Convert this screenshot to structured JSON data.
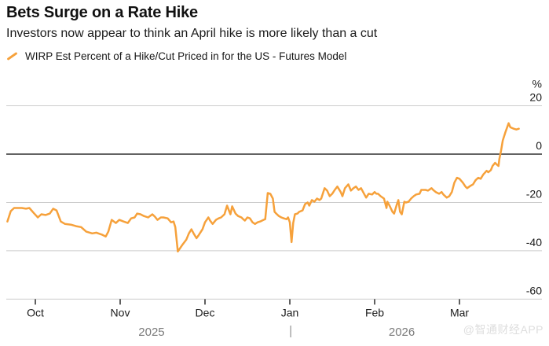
{
  "header": {
    "title": "Bets Surge on a Rate Hike",
    "subtitle": "Investors now appear to think an April hike is more likely than a cut"
  },
  "legend": {
    "series_label": "WIRP Est Percent of a Hike/Cut Priced in for the US - Futures Model"
  },
  "watermark": "@智通财经APP",
  "colors": {
    "line": "#F6A13B",
    "gridline": "#CCCCCC",
    "zero_line": "#636363",
    "axis_text": "#1A1A1A",
    "tick_mark": "#2B2B2B",
    "year_text": "#7A7A7A",
    "watermark": "#DEDEDE"
  },
  "chart_data": {
    "type": "line",
    "title": "Bets Surge on a Rate Hike",
    "subtitle": "Investors now appear to think an April hike is more likely than a cut",
    "legend": "WIRP Est Percent of a Hike/Cut Priced in for the US - Futures Model",
    "ylabel": "%",
    "y_ticks": [
      20,
      0,
      -20,
      -40,
      -60
    ],
    "ylim": [
      -66,
      26
    ],
    "zero_line": true,
    "grid": "horizontal",
    "legend_position": "top-left",
    "x_unit": "months from Oct 2025 tick (0=Oct, 1=Nov, 2=Dec, 3=Jan, 4=Feb, 5=Mar)",
    "x_tick_labels": [
      "Oct",
      "Nov",
      "Dec",
      "Jan",
      "Feb",
      "Mar"
    ],
    "year_labels": [
      {
        "text": "2025",
        "m": 1.37
      },
      {
        "text": "2026",
        "m": 4.32
      }
    ],
    "year_divider_m": 3.01,
    "series": [
      {
        "name": "WIRP Est Percent of a Hike/Cut Priced in for the US - Futures Model",
        "points": [
          [
            -0.33,
            -27.9
          ],
          [
            -0.29,
            -23.6
          ],
          [
            -0.25,
            -22.3
          ],
          [
            -0.21,
            -22.3
          ],
          [
            -0.16,
            -22.3
          ],
          [
            -0.11,
            -22.6
          ],
          [
            -0.07,
            -22.3
          ],
          [
            -0.02,
            -24.3
          ],
          [
            0.03,
            -26.2
          ],
          [
            0.07,
            -24.9
          ],
          [
            0.12,
            -25.2
          ],
          [
            0.17,
            -24.6
          ],
          [
            0.21,
            -22.6
          ],
          [
            0.25,
            -23.3
          ],
          [
            0.3,
            -27.9
          ],
          [
            0.35,
            -28.9
          ],
          [
            0.42,
            -29.2
          ],
          [
            0.48,
            -29.8
          ],
          [
            0.54,
            -30.2
          ],
          [
            0.6,
            -32.1
          ],
          [
            0.67,
            -32.8
          ],
          [
            0.72,
            -32.5
          ],
          [
            0.79,
            -33.4
          ],
          [
            0.83,
            -34.1
          ],
          [
            0.86,
            -32.1
          ],
          [
            0.9,
            -27.2
          ],
          [
            0.95,
            -28.5
          ],
          [
            0.99,
            -27.2
          ],
          [
            1.04,
            -27.9
          ],
          [
            1.09,
            -28.5
          ],
          [
            1.13,
            -26.6
          ],
          [
            1.17,
            -26.2
          ],
          [
            1.2,
            -24.6
          ],
          [
            1.24,
            -24.9
          ],
          [
            1.28,
            -25.6
          ],
          [
            1.33,
            -26.2
          ],
          [
            1.38,
            -24.9
          ],
          [
            1.41,
            -25.9
          ],
          [
            1.44,
            -27.2
          ],
          [
            1.48,
            -26.2
          ],
          [
            1.51,
            -26.2
          ],
          [
            1.56,
            -26.6
          ],
          [
            1.6,
            -28.2
          ],
          [
            1.63,
            -27.9
          ],
          [
            1.65,
            -30.2
          ],
          [
            1.68,
            -40.3
          ],
          [
            1.73,
            -37.7
          ],
          [
            1.78,
            -35.4
          ],
          [
            1.81,
            -32.8
          ],
          [
            1.84,
            -31.1
          ],
          [
            1.87,
            -33.1
          ],
          [
            1.9,
            -34.8
          ],
          [
            1.92,
            -33.8
          ],
          [
            1.97,
            -31.1
          ],
          [
            2.0,
            -28.2
          ],
          [
            2.04,
            -26.2
          ],
          [
            2.06,
            -27.5
          ],
          [
            2.09,
            -28.9
          ],
          [
            2.13,
            -27.2
          ],
          [
            2.16,
            -26.6
          ],
          [
            2.19,
            -26.2
          ],
          [
            2.23,
            -24.9
          ],
          [
            2.26,
            -21.3
          ],
          [
            2.3,
            -24.9
          ],
          [
            2.32,
            -21.6
          ],
          [
            2.36,
            -24.6
          ],
          [
            2.39,
            -25.6
          ],
          [
            2.43,
            -26.2
          ],
          [
            2.45,
            -26.9
          ],
          [
            2.47,
            -27.5
          ],
          [
            2.5,
            -26.2
          ],
          [
            2.53,
            -26.6
          ],
          [
            2.56,
            -28.2
          ],
          [
            2.59,
            -28.9
          ],
          [
            2.62,
            -28.2
          ],
          [
            2.65,
            -27.9
          ],
          [
            2.69,
            -27.2
          ],
          [
            2.71,
            -26.9
          ],
          [
            2.74,
            -16.1
          ],
          [
            2.77,
            -16.4
          ],
          [
            2.8,
            -18.4
          ],
          [
            2.82,
            -23.9
          ],
          [
            2.84,
            -24.6
          ],
          [
            2.87,
            -25.6
          ],
          [
            2.9,
            -26.2
          ],
          [
            2.93,
            -26.6
          ],
          [
            2.96,
            -26.9
          ],
          [
            2.98,
            -26.2
          ],
          [
            3.0,
            -28.2
          ],
          [
            3.02,
            -36.4
          ],
          [
            3.04,
            -28.5
          ],
          [
            3.06,
            -24.9
          ],
          [
            3.09,
            -24.6
          ],
          [
            3.11,
            -23.9
          ],
          [
            3.15,
            -23.3
          ],
          [
            3.18,
            -20.7
          ],
          [
            3.21,
            -20.0
          ],
          [
            3.23,
            -21.3
          ],
          [
            3.26,
            -19.0
          ],
          [
            3.29,
            -19.7
          ],
          [
            3.32,
            -18.4
          ],
          [
            3.35,
            -19.0
          ],
          [
            3.37,
            -18.4
          ],
          [
            3.41,
            -14.1
          ],
          [
            3.44,
            -15.1
          ],
          [
            3.47,
            -17.4
          ],
          [
            3.5,
            -16.4
          ],
          [
            3.53,
            -14.8
          ],
          [
            3.56,
            -13.4
          ],
          [
            3.6,
            -15.7
          ],
          [
            3.62,
            -17.4
          ],
          [
            3.65,
            -14.1
          ],
          [
            3.69,
            -12.5
          ],
          [
            3.72,
            -15.1
          ],
          [
            3.75,
            -14.1
          ],
          [
            3.78,
            -13.4
          ],
          [
            3.81,
            -14.8
          ],
          [
            3.84,
            -14.1
          ],
          [
            3.88,
            -16.7
          ],
          [
            3.9,
            -18.0
          ],
          [
            3.93,
            -16.4
          ],
          [
            3.97,
            -16.7
          ],
          [
            4.0,
            -15.7
          ],
          [
            4.02,
            -16.4
          ],
          [
            4.04,
            -16.4
          ],
          [
            4.07,
            -17.4
          ],
          [
            4.11,
            -18.4
          ],
          [
            4.14,
            -22.3
          ],
          [
            4.15,
            -19.7
          ],
          [
            4.18,
            -21.6
          ],
          [
            4.21,
            -23.9
          ],
          [
            4.23,
            -24.6
          ],
          [
            4.26,
            -21.0
          ],
          [
            4.28,
            -19.0
          ],
          [
            4.3,
            -23.9
          ],
          [
            4.32,
            -24.9
          ],
          [
            4.35,
            -19.7
          ],
          [
            4.37,
            -20.0
          ],
          [
            4.4,
            -19.7
          ],
          [
            4.43,
            -18.4
          ],
          [
            4.46,
            -17.4
          ],
          [
            4.49,
            -16.7
          ],
          [
            4.53,
            -16.4
          ],
          [
            4.55,
            -14.8
          ],
          [
            4.6,
            -14.8
          ],
          [
            4.63,
            -15.1
          ],
          [
            4.67,
            -14.1
          ],
          [
            4.69,
            -14.8
          ],
          [
            4.72,
            -15.7
          ],
          [
            4.76,
            -16.4
          ],
          [
            4.79,
            -15.7
          ],
          [
            4.81,
            -16.7
          ],
          [
            4.85,
            -18.0
          ],
          [
            4.88,
            -17.4
          ],
          [
            4.91,
            -15.7
          ],
          [
            4.94,
            -11.8
          ],
          [
            4.97,
            -9.8
          ],
          [
            5.0,
            -10.2
          ],
          [
            5.04,
            -11.8
          ],
          [
            5.07,
            -13.4
          ],
          [
            5.09,
            -14.1
          ],
          [
            5.13,
            -13.1
          ],
          [
            5.16,
            -12.5
          ],
          [
            5.19,
            -10.8
          ],
          [
            5.22,
            -9.8
          ],
          [
            5.25,
            -10.2
          ],
          [
            5.28,
            -8.5
          ],
          [
            5.32,
            -6.9
          ],
          [
            5.34,
            -7.5
          ],
          [
            5.37,
            -6.6
          ],
          [
            5.39,
            -4.9
          ],
          [
            5.42,
            -3.6
          ],
          [
            5.44,
            -4.3
          ],
          [
            5.46,
            -4.9
          ],
          [
            5.47,
            -2.0
          ],
          [
            5.49,
            1.3
          ],
          [
            5.51,
            5.6
          ],
          [
            5.54,
            8.9
          ],
          [
            5.58,
            12.8
          ],
          [
            5.6,
            11.1
          ],
          [
            5.64,
            10.5
          ],
          [
            5.67,
            10.2
          ],
          [
            5.7,
            10.5
          ]
        ]
      }
    ]
  }
}
